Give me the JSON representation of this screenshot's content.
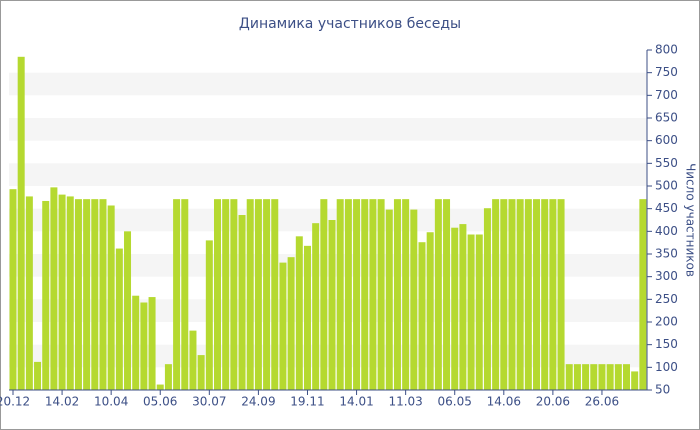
{
  "chart_data": {
    "type": "bar",
    "title": "Динамика участников беседы",
    "y_label": "Число участников",
    "categories": [
      "20.12",
      null,
      null,
      null,
      null,
      null,
      "14.02",
      null,
      null,
      null,
      null,
      null,
      "10.04",
      null,
      null,
      null,
      null,
      null,
      "05.06",
      null,
      null,
      null,
      null,
      null,
      "30.07",
      null,
      null,
      null,
      null,
      null,
      "24.09",
      null,
      null,
      null,
      null,
      null,
      "19.11",
      null,
      null,
      null,
      null,
      null,
      "14.01",
      null,
      null,
      null,
      null,
      null,
      "11.03",
      null,
      null,
      null,
      null,
      null,
      "06.05",
      null,
      null,
      null,
      null,
      null,
      "14.06",
      null,
      null,
      null,
      null,
      null,
      "20.06",
      null,
      null,
      null,
      null,
      null,
      "26.06",
      null,
      null,
      null,
      null,
      null
    ],
    "values": [
      493,
      785,
      477,
      112,
      467,
      497,
      481,
      477,
      471,
      471,
      471,
      471,
      457,
      362,
      400,
      258,
      243,
      255,
      62,
      107,
      471,
      471,
      181,
      127,
      380,
      471,
      471,
      471,
      436,
      471,
      471,
      471,
      471,
      331,
      343,
      389,
      368,
      418,
      471,
      425,
      471,
      471,
      471,
      471,
      471,
      471,
      448,
      471,
      471,
      448,
      376,
      398,
      471,
      471,
      408,
      416,
      393,
      393,
      451,
      471,
      471,
      471,
      471,
      471,
      471,
      471,
      471,
      471,
      107,
      107,
      107,
      107,
      107,
      107,
      107,
      107,
      91,
      471
    ],
    "color": "#b5d930",
    "ylim": [
      50,
      800
    ],
    "yticks": [
      50,
      100,
      150,
      200,
      250,
      300,
      350,
      400,
      450,
      500,
      550,
      600,
      650,
      700,
      750,
      800
    ],
    "grid": true
  }
}
